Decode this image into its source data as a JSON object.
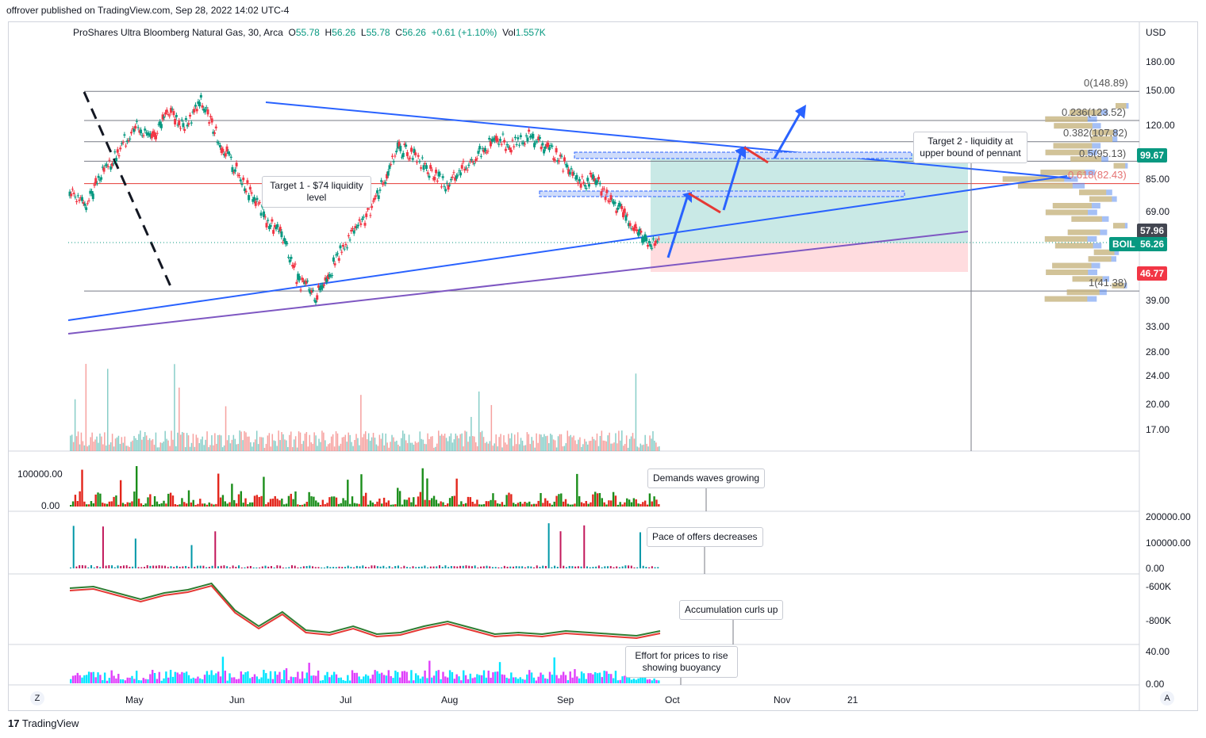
{
  "publish_line": "offrover published on TradingView.com, Sep 28, 2022 14:02 UTC-4",
  "legend": {
    "name": "ProShares Ultra Bloomberg Natural Gas, 30, Arca",
    "o_label": "O",
    "o": "55.78",
    "h_label": "H",
    "h": "56.26",
    "l_label": "L",
    "l": "55.78",
    "c_label": "C",
    "c": "56.26",
    "change": "+0.61 (+1.10%)",
    "vol_label": "Vol",
    "vol": "1.557K"
  },
  "currency": "USD",
  "price_axis": [
    "180.00",
    "150.00",
    "120.00",
    "85.00",
    "69.00",
    "39.00",
    "33.00",
    "28.00",
    "24.00",
    "20.00",
    "17.00"
  ],
  "price_badges": {
    "target": "99.67",
    "level": "57.96",
    "symbol": "BOIL",
    "last": "56.26",
    "stop": "46.77"
  },
  "fib_labels": [
    "0(148.89)",
    "0.236(123.52)",
    "0.382(107.82)",
    "0.5(95.13)",
    "0.618(82.43)",
    "1(41.38)"
  ],
  "annotations": {
    "target1": "Target 1 - $74 liquidity level",
    "target2": "Target 2 - liquidity at upper bound of pennant",
    "demand": "Demands waves growing",
    "offers": "Pace of offers decreases",
    "accum": "Accumulation curls up",
    "effort": "Effort for prices to rise showing buoyancy"
  },
  "pane_axes": {
    "p1": [
      "100000.00",
      "0.00"
    ],
    "p2": [
      "200000.00",
      "100000.00",
      "0.00"
    ],
    "p3": [
      "-600K",
      "-800K"
    ],
    "p4": [
      "40.00",
      "0.00"
    ]
  },
  "time_axis": [
    "May",
    "Jun",
    "Jul",
    "Aug",
    "Sep",
    "Oct",
    "Nov",
    "21"
  ],
  "footer": "TradingView",
  "buttons": {
    "zoom": "Z",
    "auto": "A"
  },
  "colors": {
    "up": "#089981",
    "down": "#f23645",
    "trend": "#2962ff",
    "support": "#7e57c2",
    "target_zone": "#b2dfdb",
    "stop_zone": "#ffcdd2",
    "volume_up": "#26a69a",
    "volume_down": "#ef5350"
  },
  "chart_data": {
    "type": "candlestick",
    "title": "ProShares Ultra Bloomberg Natural Gas, 30, Arca",
    "x": [
      "May",
      "Jun",
      "Jul",
      "Aug",
      "Sep"
    ],
    "close_path": [
      78,
      72,
      88,
      100,
      122,
      108,
      134,
      118,
      140,
      110,
      92,
      78,
      65,
      58,
      44,
      40,
      48,
      58,
      66,
      80,
      104,
      98,
      88,
      82,
      92,
      100,
      110,
      104,
      112,
      104,
      96,
      82,
      85,
      74,
      66,
      58,
      56
    ],
    "ylim": [
      15,
      200
    ],
    "log_scale": true,
    "fibonacci": [
      {
        "level": "0",
        "price": 148.89
      },
      {
        "level": "0.236",
        "price": 123.52
      },
      {
        "level": "0.382",
        "price": 107.82
      },
      {
        "level": "0.5",
        "price": 95.13
      },
      {
        "level": "0.618",
        "price": 82.43
      },
      {
        "level": "1",
        "price": 41.38
      }
    ],
    "long_position": {
      "entry": 56.26,
      "target": 99.67,
      "stop": 46.77
    }
  }
}
